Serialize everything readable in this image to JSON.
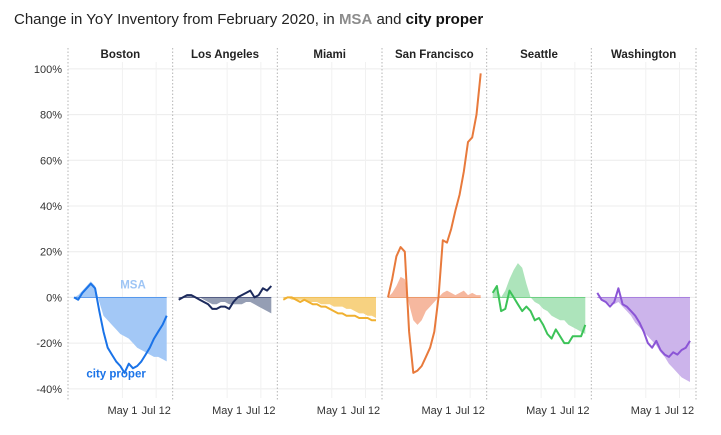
{
  "title": {
    "prefix": "Change in YoY Inventory from February 2020, in ",
    "msa": "MSA",
    "joiner": " and ",
    "city": "city proper"
  },
  "chart_data": {
    "type": "area",
    "y_axis": {
      "ylim": [
        -44,
        103
      ],
      "ticks": [
        -40,
        -20,
        0,
        20,
        40,
        60,
        80,
        100
      ],
      "tick_labels": [
        "-40%",
        "-20%",
        "0%",
        "20%",
        "40%",
        "60%",
        "80%",
        "100%"
      ]
    },
    "x_axis": {
      "xlim": [
        0,
        22
      ],
      "tick_positions": [
        11.5,
        19.5
      ],
      "tick_labels": [
        "May 1",
        "Jul 12"
      ]
    },
    "grid": true,
    "annotations": [
      {
        "panel": "Boston",
        "text": "MSA",
        "x": 14,
        "y": 4,
        "color": "#9ec5f5"
      },
      {
        "panel": "Boston",
        "text": "city proper",
        "x": 10,
        "y": -35,
        "color": "#1a73e8"
      }
    ],
    "panels": [
      {
        "name": "Boston",
        "area_color": "#9ec5f5",
        "line_color": "#1a73e8",
        "series": [
          {
            "name": "MSA",
            "x": [
              0,
              1,
              2,
              3,
              4,
              5,
              6,
              7,
              8,
              9,
              10,
              11,
              12,
              13,
              14,
              15,
              16,
              17,
              18,
              19,
              20,
              21,
              22
            ],
            "values": [
              0,
              1,
              3,
              5,
              7,
              5,
              -2,
              -8,
              -10,
              -12,
              -14,
              -16,
              -17,
              -18,
              -20,
              -22,
              -23,
              -24,
              -25,
              -26,
              -26,
              -27,
              -28
            ]
          },
          {
            "name": "city proper",
            "x": [
              0,
              1,
              2,
              3,
              4,
              5,
              6,
              7,
              8,
              9,
              10,
              11,
              12,
              13,
              14,
              15,
              16,
              17,
              18,
              19,
              20,
              21,
              22
            ],
            "values": [
              0,
              -1,
              2,
              4,
              6,
              4,
              -6,
              -15,
              -22,
              -25,
              -28,
              -30,
              -33,
              -29,
              -31,
              -30,
              -28,
              -25,
              -22,
              -18,
              -15,
              -12,
              -8
            ]
          }
        ]
      },
      {
        "name": "Los Angeles",
        "area_color": "#8f99b0",
        "line_color": "#1c2a5c",
        "series": [
          {
            "name": "MSA",
            "x": [
              0,
              1,
              2,
              3,
              4,
              5,
              6,
              7,
              8,
              9,
              10,
              11,
              12,
              13,
              14,
              15,
              16,
              17,
              18,
              19,
              20,
              21,
              22
            ],
            "values": [
              0,
              0,
              1,
              1,
              0,
              0,
              -1,
              -2,
              -3,
              -3,
              -2,
              -2,
              -3,
              -3,
              -3,
              -3,
              -2,
              -2,
              -3,
              -4,
              -5,
              -6,
              -7
            ]
          },
          {
            "name": "city proper",
            "x": [
              0,
              1,
              2,
              3,
              4,
              5,
              6,
              7,
              8,
              9,
              10,
              11,
              12,
              13,
              14,
              15,
              16,
              17,
              18,
              19,
              20,
              21,
              22
            ],
            "values": [
              -1,
              0,
              1,
              1,
              0,
              -1,
              -2,
              -3,
              -5,
              -5,
              -4,
              -4,
              -5,
              -2,
              0,
              1,
              2,
              3,
              0,
              1,
              4,
              3,
              5
            ]
          }
        ]
      },
      {
        "name": "Miami",
        "area_color": "#f7d07a",
        "line_color": "#f0b030",
        "series": [
          {
            "name": "MSA",
            "x": [
              0,
              1,
              2,
              3,
              4,
              5,
              6,
              7,
              8,
              9,
              10,
              11,
              12,
              13,
              14,
              15,
              16,
              17,
              18,
              19,
              20,
              21,
              22
            ],
            "values": [
              0,
              0,
              -1,
              -1,
              -1,
              -1,
              -2,
              -2,
              -2,
              -3,
              -3,
              -3,
              -4,
              -4,
              -4,
              -5,
              -5,
              -6,
              -7,
              -7,
              -8,
              -8,
              -9
            ]
          },
          {
            "name": "city proper",
            "x": [
              0,
              1,
              2,
              3,
              4,
              5,
              6,
              7,
              8,
              9,
              10,
              11,
              12,
              13,
              14,
              15,
              16,
              17,
              18,
              19,
              20,
              21,
              22
            ],
            "values": [
              -1,
              0,
              0,
              -1,
              -2,
              -1,
              -2,
              -3,
              -3,
              -4,
              -4,
              -5,
              -6,
              -7,
              -7,
              -8,
              -8,
              -8,
              -9,
              -9,
              -9,
              -10,
              -10
            ]
          }
        ]
      },
      {
        "name": "San Francisco",
        "area_color": "#f5b49a",
        "line_color": "#e87a3c",
        "series": [
          {
            "name": "MSA",
            "x": [
              0,
              1,
              2,
              3,
              4,
              5,
              6,
              7,
              8,
              9,
              10,
              11,
              12,
              13,
              14,
              15,
              16,
              17,
              18,
              19,
              20,
              21,
              22
            ],
            "values": [
              0,
              2,
              5,
              9,
              8,
              -3,
              -10,
              -12,
              -10,
              -6,
              -4,
              -2,
              0,
              2,
              3,
              2,
              1,
              2,
              3,
              1,
              2,
              1,
              1
            ]
          },
          {
            "name": "city proper",
            "x": [
              0,
              1,
              2,
              3,
              4,
              5,
              6,
              7,
              8,
              9,
              10,
              11,
              12,
              13,
              14,
              15,
              16,
              17,
              18,
              19,
              20,
              21,
              22
            ],
            "values": [
              0,
              8,
              18,
              22,
              20,
              -15,
              -33,
              -32,
              -30,
              -26,
              -22,
              -15,
              0,
              25,
              24,
              30,
              38,
              45,
              55,
              68,
              70,
              80,
              98
            ]
          }
        ]
      },
      {
        "name": "Seattle",
        "area_color": "#a9e3b7",
        "line_color": "#3cc358",
        "series": [
          {
            "name": "MSA",
            "x": [
              0,
              1,
              2,
              3,
              4,
              5,
              6,
              7,
              8,
              9,
              10,
              11,
              12,
              13,
              14,
              15,
              16,
              17,
              18,
              19,
              20,
              21,
              22
            ],
            "values": [
              2,
              4,
              0,
              3,
              8,
              12,
              15,
              13,
              6,
              0,
              -2,
              -3,
              -5,
              -6,
              -8,
              -9,
              -10,
              -10,
              -12,
              -13,
              -14,
              -15,
              -16
            ]
          },
          {
            "name": "city proper",
            "x": [
              0,
              1,
              2,
              3,
              4,
              5,
              6,
              7,
              8,
              9,
              10,
              11,
              12,
              13,
              14,
              15,
              16,
              17,
              18,
              19,
              20,
              21,
              22
            ],
            "values": [
              2,
              5,
              -6,
              -5,
              3,
              0,
              -3,
              -6,
              -4,
              -6,
              -10,
              -9,
              -12,
              -16,
              -18,
              -14,
              -17,
              -20,
              -20,
              -17,
              -17,
              -17,
              -12
            ]
          }
        ]
      },
      {
        "name": "Washington",
        "area_color": "#c9b0ea",
        "line_color": "#8b55d6",
        "series": [
          {
            "name": "MSA",
            "x": [
              0,
              1,
              2,
              3,
              4,
              5,
              6,
              7,
              8,
              9,
              10,
              11,
              12,
              13,
              14,
              15,
              16,
              17,
              18,
              19,
              20,
              21,
              22
            ],
            "values": [
              0,
              -1,
              -2,
              -3,
              -3,
              -2,
              -4,
              -6,
              -8,
              -11,
              -13,
              -15,
              -17,
              -19,
              -21,
              -24,
              -26,
              -29,
              -31,
              -33,
              -35,
              -36,
              -37
            ]
          },
          {
            "name": "city proper",
            "x": [
              0,
              1,
              2,
              3,
              4,
              5,
              6,
              7,
              8,
              9,
              10,
              11,
              12,
              13,
              14,
              15,
              16,
              17,
              18,
              19,
              20,
              21,
              22
            ],
            "values": [
              2,
              -1,
              -2,
              -4,
              -2,
              4,
              -3,
              -4,
              -6,
              -8,
              -11,
              -15,
              -20,
              -22,
              -19,
              -23,
              -25,
              -26,
              -24,
              -25,
              -23,
              -22,
              -19
            ]
          }
        ]
      }
    ]
  }
}
